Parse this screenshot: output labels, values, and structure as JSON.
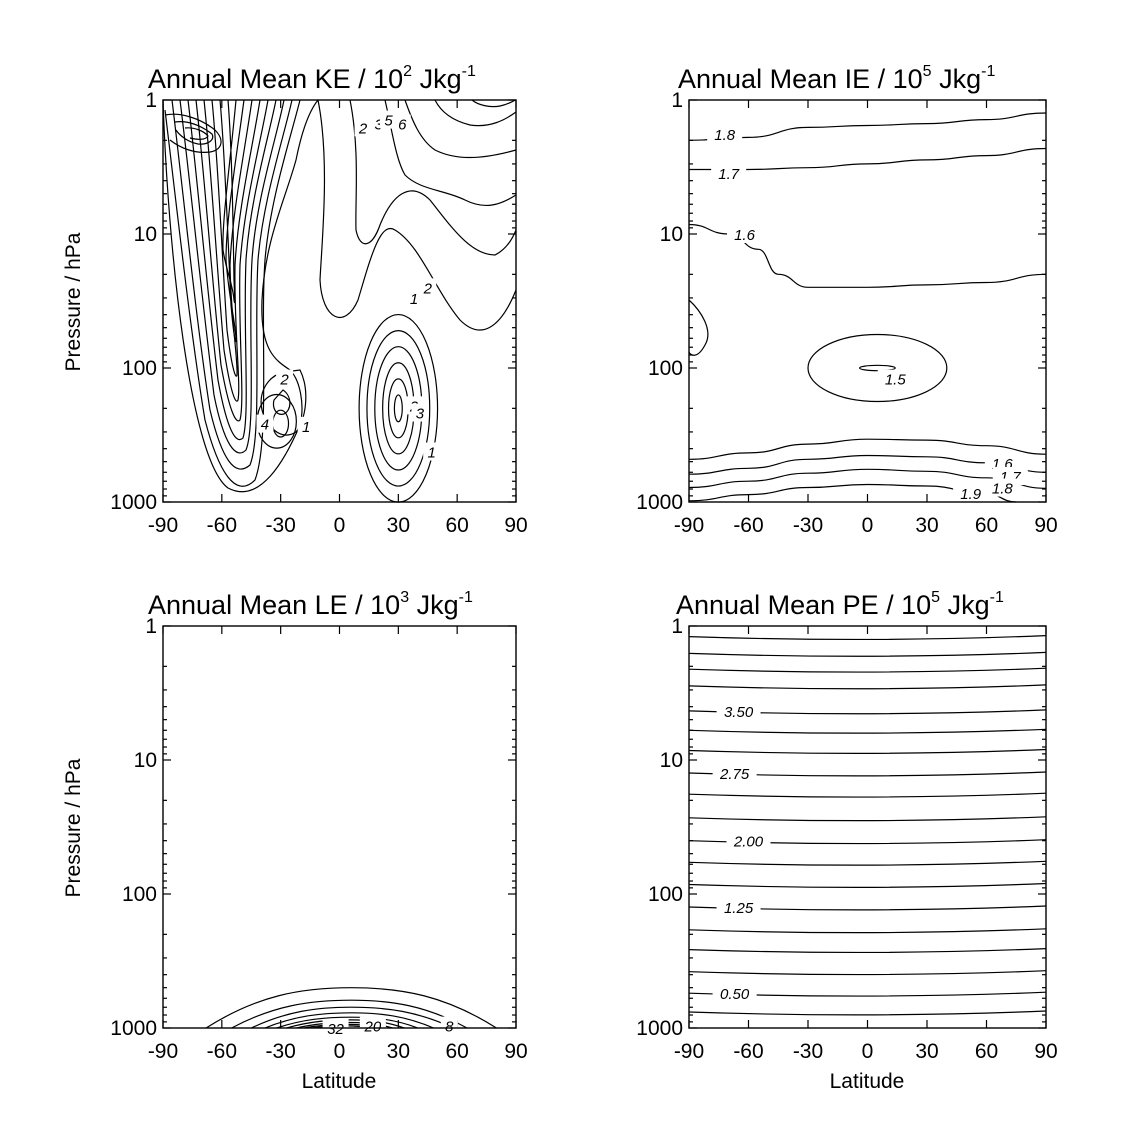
{
  "chart_data": [
    {
      "type": "contour",
      "title": "Annual Mean KE / 10",
      "title_exponent": "2",
      "title_unit": " Jkg",
      "title_unit_exponent": "-1",
      "ylabel": "Pressure / hPa",
      "xlabel": "",
      "x_ticks": [
        "-90",
        "-60",
        "-30",
        "0",
        "30",
        "60",
        "90"
      ],
      "xlim": [
        -90,
        90
      ],
      "y_ticks": [
        "1",
        "10",
        "100",
        "1000"
      ],
      "ylim": [
        1000,
        1
      ],
      "y_scale": "log",
      "contour_labels": [
        {
          "text": "2",
          "lat": 12,
          "p": 1.6
        },
        {
          "text": "3",
          "lat": 20,
          "p": 1.5
        },
        {
          "text": "5",
          "lat": 25,
          "p": 1.4
        },
        {
          "text": "6",
          "lat": 32,
          "p": 1.5
        },
        {
          "text": "2",
          "lat": 45,
          "p": 25
        },
        {
          "text": "1",
          "lat": 38,
          "p": 30
        },
        {
          "text": "2",
          "lat": -28,
          "p": 120
        },
        {
          "text": "4",
          "lat": -38,
          "p": 260
        },
        {
          "text": "1",
          "lat": -17,
          "p": 270
        },
        {
          "text": "2",
          "lat": 38,
          "p": 190
        },
        {
          "text": "3",
          "lat": 41,
          "p": 215
        },
        {
          "text": "1",
          "lat": 47,
          "p": 420
        }
      ],
      "contours": [
        {
          "kind": "closed",
          "lat": 30,
          "p": 200,
          "rx": 2,
          "ry": 0.1
        },
        {
          "kind": "closed",
          "lat": 30,
          "p": 200,
          "rx": 5,
          "ry": 0.22
        },
        {
          "kind": "closed",
          "lat": 30,
          "p": 200,
          "rx": 8,
          "ry": 0.34
        },
        {
          "kind": "closed",
          "lat": 30,
          "p": 200,
          "rx": 12,
          "ry": 0.46
        },
        {
          "kind": "closed",
          "lat": 30,
          "p": 200,
          "rx": 16,
          "ry": 0.58
        },
        {
          "kind": "closed",
          "lat": 30,
          "p": 200,
          "rx": 20,
          "ry": 0.7
        },
        {
          "kind": "closed",
          "lat": -30,
          "p": 260,
          "rx": 4,
          "ry": 0.1
        },
        {
          "kind": "closed",
          "lat": -32,
          "p": 250,
          "rx": 10,
          "ry": 0.2
        }
      ]
    },
    {
      "type": "contour",
      "title": "Annual Mean IE / 10",
      "title_exponent": "5",
      "title_unit": " Jkg",
      "title_unit_exponent": "-1",
      "ylabel": "",
      "xlabel": "",
      "x_ticks": [
        "-90",
        "-60",
        "-30",
        "0",
        "30",
        "60",
        "90"
      ],
      "xlim": [
        -90,
        90
      ],
      "y_ticks": [
        "1",
        "10",
        "100",
        "1000"
      ],
      "ylim": [
        1000,
        1
      ],
      "y_scale": "log",
      "contour_labels": [
        {
          "text": "1.8",
          "lat": -72,
          "p": 1.8
        },
        {
          "text": "1.7",
          "lat": -70,
          "p": 3.5
        },
        {
          "text": "1.6",
          "lat": -62,
          "p": 10
        },
        {
          "text": "1.5",
          "lat": 14,
          "p": 120
        },
        {
          "text": "1.6",
          "lat": 68,
          "p": 510
        },
        {
          "text": "1.7",
          "lat": 72,
          "p": 640
        },
        {
          "text": "1.8",
          "lat": 68,
          "p": 780
        },
        {
          "text": "1.9",
          "lat": 52,
          "p": 860
        }
      ],
      "contours": [
        {
          "kind": "line",
          "value": "1.8",
          "points": [
            [
              -90,
              2.0
            ],
            [
              -60,
              1.9
            ],
            [
              -30,
              1.6
            ],
            [
              0,
              1.55
            ],
            [
              30,
              1.5
            ],
            [
              60,
              1.4
            ],
            [
              90,
              1.25
            ]
          ]
        },
        {
          "kind": "line",
          "value": "1.7",
          "points": [
            [
              -90,
              3.3
            ],
            [
              -60,
              3.3
            ],
            [
              -30,
              3.2
            ],
            [
              0,
              3.0
            ],
            [
              30,
              2.8
            ],
            [
              60,
              2.6
            ],
            [
              90,
              2.3
            ]
          ]
        },
        {
          "kind": "line",
          "value": "1.6",
          "points": [
            [
              -90,
              8.5
            ],
            [
              -70,
              10
            ],
            [
              -55,
              13
            ],
            [
              -45,
              20
            ],
            [
              -30,
              25
            ],
            [
              0,
              25
            ],
            [
              30,
              24
            ],
            [
              60,
              23
            ],
            [
              90,
              20
            ]
          ]
        },
        {
          "kind": "closed",
          "value": "1.5",
          "lat": 5,
          "p": 100,
          "rx": 35,
          "ry": 0.25
        },
        {
          "kind": "closed",
          "value": "",
          "lat": 5,
          "p": 100,
          "rx": 9,
          "ry": 0.02
        },
        {
          "kind": "line",
          "value": "1.6",
          "points": [
            [
              -90,
              480
            ],
            [
              -60,
              430
            ],
            [
              -30,
              370
            ],
            [
              0,
              340
            ],
            [
              30,
              345
            ],
            [
              60,
              380
            ],
            [
              90,
              440
            ]
          ]
        },
        {
          "kind": "line",
          "value": "1.7",
          "points": [
            [
              -90,
              620
            ],
            [
              -60,
              560
            ],
            [
              -30,
              480
            ],
            [
              0,
              450
            ],
            [
              30,
              460
            ],
            [
              60,
              510
            ],
            [
              90,
              600
            ]
          ]
        },
        {
          "kind": "line",
          "value": "1.8",
          "points": [
            [
              -90,
              780
            ],
            [
              -60,
              700
            ],
            [
              -30,
              610
            ],
            [
              0,
              570
            ],
            [
              30,
              590
            ],
            [
              60,
              660
            ],
            [
              90,
              790
            ]
          ]
        },
        {
          "kind": "line",
          "value": "1.9",
          "points": [
            [
              -90,
              980
            ],
            [
              -60,
              880
            ],
            [
              -30,
              780
            ],
            [
              0,
              740
            ],
            [
              30,
              760
            ],
            [
              60,
              870
            ],
            [
              75,
              1000
            ]
          ]
        }
      ]
    },
    {
      "type": "contour",
      "title": "Annual Mean LE / 10",
      "title_exponent": "3",
      "title_unit": " Jkg",
      "title_unit_exponent": "-1",
      "ylabel": "Pressure / hPa",
      "xlabel": "Latitude",
      "x_ticks": [
        "-90",
        "-60",
        "-30",
        "0",
        "30",
        "60",
        "90"
      ],
      "xlim": [
        -90,
        90
      ],
      "y_ticks": [
        "1",
        "10",
        "100",
        "1000"
      ],
      "ylim": [
        1000,
        1
      ],
      "y_scale": "log",
      "contour_labels": [
        {
          "text": "32",
          "lat": -2,
          "p": 1000
        },
        {
          "text": "20",
          "lat": 17,
          "p": 960
        },
        {
          "text": "8",
          "lat": 56,
          "p": 960
        }
      ],
      "contours": [
        {
          "kind": "dome",
          "value": "",
          "lat0": -68,
          "lat1": 80,
          "peak_lat": 6,
          "peak_p": 500
        },
        {
          "kind": "dome",
          "value": "",
          "lat0": -55,
          "lat1": 65,
          "peak_lat": 6,
          "peak_p": 620
        },
        {
          "kind": "dome",
          "value": "8",
          "lat0": -45,
          "lat1": 58,
          "peak_lat": 6,
          "peak_p": 700
        },
        {
          "kind": "dome",
          "value": "",
          "lat0": -38,
          "lat1": 48,
          "peak_lat": 6,
          "peak_p": 770
        },
        {
          "kind": "dome",
          "value": "",
          "lat0": -32,
          "lat1": 40,
          "peak_lat": 6,
          "peak_p": 830
        },
        {
          "kind": "dome",
          "value": "20",
          "lat0": -27,
          "lat1": 33,
          "peak_lat": 6,
          "peak_p": 870
        },
        {
          "kind": "dome",
          "value": "",
          "lat0": -22,
          "lat1": 27,
          "peak_lat": 5,
          "peak_p": 910
        },
        {
          "kind": "dome",
          "value": "",
          "lat0": -18,
          "lat1": 22,
          "peak_lat": 4,
          "peak_p": 940
        },
        {
          "kind": "dome",
          "value": "32",
          "lat0": -14,
          "lat1": 16,
          "peak_lat": 3,
          "peak_p": 965
        }
      ]
    },
    {
      "type": "contour",
      "title": "Annual Mean PE / 10",
      "title_exponent": "5",
      "title_unit": " Jkg",
      "title_unit_exponent": "-1",
      "ylabel": "",
      "xlabel": "Latitude",
      "x_ticks": [
        "-90",
        "-60",
        "-30",
        "0",
        "30",
        "60",
        "90"
      ],
      "xlim": [
        -90,
        90
      ],
      "y_ticks": [
        "1",
        "10",
        "100",
        "1000"
      ],
      "ylim": [
        1000,
        1
      ],
      "y_scale": "log",
      "contour_labels": [
        {
          "text": "3.50",
          "lat": -65,
          "p": 4.3
        },
        {
          "text": "2.75",
          "lat": -67,
          "p": 12.5
        },
        {
          "text": "2.00",
          "lat": -60,
          "p": 40
        },
        {
          "text": "1.25",
          "lat": -65,
          "p": 125
        },
        {
          "text": "0.50",
          "lat": -67,
          "p": 550
        }
      ],
      "contours": [
        {
          "kind": "hline",
          "value": "",
          "p": 1.2
        },
        {
          "kind": "hline",
          "value": "",
          "p": 1.6
        },
        {
          "kind": "hline",
          "value": "",
          "p": 2.1
        },
        {
          "kind": "hline",
          "value": "",
          "p": 2.8
        },
        {
          "kind": "hline",
          "value": "3.50",
          "p": 4.3
        },
        {
          "kind": "hline",
          "value": "",
          "p": 6
        },
        {
          "kind": "hline",
          "value": "",
          "p": 8.5
        },
        {
          "kind": "hline",
          "value": "2.75",
          "p": 12.5
        },
        {
          "kind": "hline",
          "value": "",
          "p": 18
        },
        {
          "kind": "hline",
          "value": "",
          "p": 27
        },
        {
          "kind": "hline",
          "value": "2.00",
          "p": 40
        },
        {
          "kind": "hline",
          "value": "",
          "p": 58
        },
        {
          "kind": "hline",
          "value": "",
          "p": 85
        },
        {
          "kind": "hline",
          "value": "1.25",
          "p": 125
        },
        {
          "kind": "hline",
          "value": "",
          "p": 185
        },
        {
          "kind": "hline",
          "value": "",
          "p": 260
        },
        {
          "kind": "hline",
          "value": "",
          "p": 380
        },
        {
          "kind": "hline",
          "value": "0.50",
          "p": 550
        },
        {
          "kind": "hline",
          "value": "",
          "p": 760
        }
      ]
    }
  ]
}
